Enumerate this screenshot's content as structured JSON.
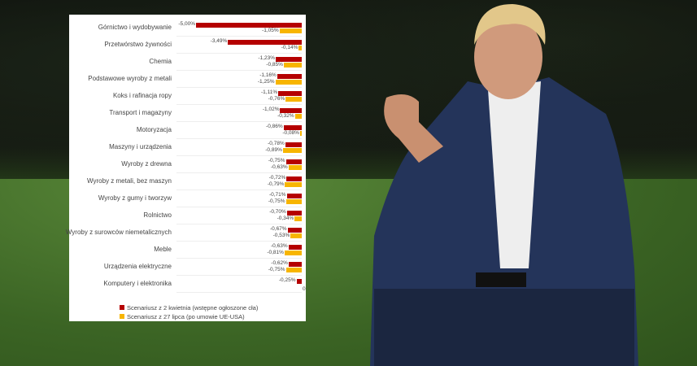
{
  "chart_data": {
    "type": "bar",
    "orientation": "horizontal",
    "categories": [
      "Górnictwo i wydobywanie",
      "Przetwórstwo żywności",
      "Chemia",
      "Podstawowe wyroby z metali",
      "Koks i rafinacja ropy",
      "Transport i magazyny",
      "Motoryzacja",
      "Maszyny i urządzenia",
      "Wyroby z drewna",
      "Wyroby z metali, bez maszyn",
      "Wyroby z gumy i tworzyw",
      "Rolnictwo",
      "Wyroby z surowców niemetalicznych",
      "Meble",
      "Urządzenia elektryczne",
      "Komputery i elektronika"
    ],
    "series": [
      {
        "name": "Scenariusz z 2 kwietnia (wstępne ogłoszone cła)",
        "color": "#b50000",
        "values": [
          -5.0,
          -3.49,
          -1.23,
          -1.16,
          -1.11,
          -1.02,
          -0.86,
          -0.78,
          -0.75,
          -0.72,
          -0.71,
          -0.7,
          -0.67,
          -0.63,
          -0.62,
          -0.25
        ],
        "labels": [
          "-5,00%",
          "-3,49%",
          "-1,23%",
          "-1,16%",
          "-1,11%",
          "-1,02%",
          "-0,86%",
          "-0,78%",
          "-0,75%",
          "-0,72%",
          "-0,71%",
          "-0,70%",
          "-0,67%",
          "-0,63%",
          "-0,62%",
          "-0,25%"
        ]
      },
      {
        "name": "Scenariusz z 27 lipca (po umowie UE-USA)",
        "color": "#f7b500",
        "values": [
          -1.05,
          -0.14,
          -0.85,
          -1.25,
          -0.76,
          -0.32,
          -0.08,
          -0.89,
          -0.63,
          -0.79,
          -0.75,
          -0.34,
          -0.53,
          -0.81,
          -0.75,
          0
        ],
        "labels": [
          "-1,05%",
          "-0,14%",
          "-0,85%",
          "-1,25%",
          "-0,76%",
          "-0,32%",
          "-0,08%",
          "-0,89%",
          "-0,63%",
          "-0,79%",
          "-0,75%",
          "-0,34%",
          "-0,53%",
          "-0,81%",
          "-0,75%",
          "0"
        ]
      }
    ],
    "xlim": [
      -5,
      0
    ],
    "grid": false,
    "legend_placement": "bottom"
  }
}
